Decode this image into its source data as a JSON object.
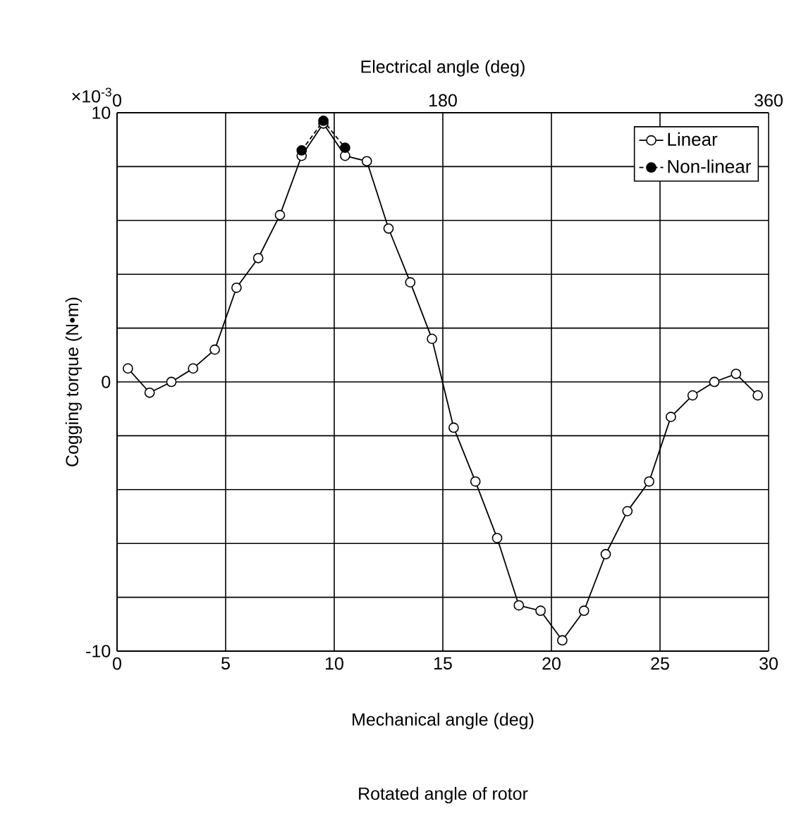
{
  "chart_data": {
    "type": "line",
    "xlabel": "Mechanical angle (deg)",
    "ylabel": "Cogging torque (N•m)",
    "x2label": "Electrical angle (deg)",
    "annotations": [
      "×10$^{-3}$",
      "Rotated angle of rotor"
    ],
    "xlim": [
      0,
      30
    ],
    "xticks": [
      0,
      5,
      10,
      15,
      20,
      25,
      30
    ],
    "x2lim": [
      0,
      360
    ],
    "x2ticks": [
      0,
      180,
      360
    ],
    "ylim": [
      -10,
      10
    ],
    "yticks": [
      -10,
      {
        "value": -8,
        "label": null
      },
      {
        "value": -6,
        "label": null
      },
      {
        "value": -4,
        "label": null
      },
      {
        "value": -2,
        "label": null
      },
      0,
      {
        "value": 2,
        "label": null
      },
      {
        "value": 4,
        "label": null
      },
      {
        "value": 6,
        "label": null
      },
      {
        "value": 8,
        "label": null
      },
      10
    ],
    "grid": true,
    "legend": "top right",
    "marker": "circle",
    "series": [
      {
        "name": "Linear",
        "color": "#000000",
        "line_style": "solid",
        "x": [
          0.5,
          1.5,
          2.5,
          3.5,
          4.5,
          5.5,
          6.5,
          7.5,
          8.5,
          9.5,
          10.5,
          11.5,
          12.5,
          13.5,
          14.5,
          15.5,
          16.5,
          17.5,
          18.5,
          19.5,
          20.5,
          21.5,
          22.5,
          23.5,
          24.5,
          25.5,
          26.5,
          27.5,
          28.5,
          29.5
        ],
        "values": [
          0.5,
          -0.4,
          0,
          0.5,
          1.2,
          3.5,
          4.6,
          6.2,
          8.4,
          9.6,
          8.4,
          8.2,
          5.7,
          3.7,
          1.6,
          -1.7,
          -3.7,
          -5.8,
          -8.3,
          -8.5,
          -9.6,
          -8.5,
          -6.4,
          -4.8,
          -3.7,
          -1.3,
          -0.5,
          0,
          0.3,
          -0.5
        ]
      },
      {
        "name": "Non-linear",
        "color": "#000000",
        "line_style": "dashed",
        "x": [
          8.5,
          9.5,
          10.5
        ],
        "values": [
          8.6,
          9.7,
          8.7
        ]
      }
    ]
  }
}
